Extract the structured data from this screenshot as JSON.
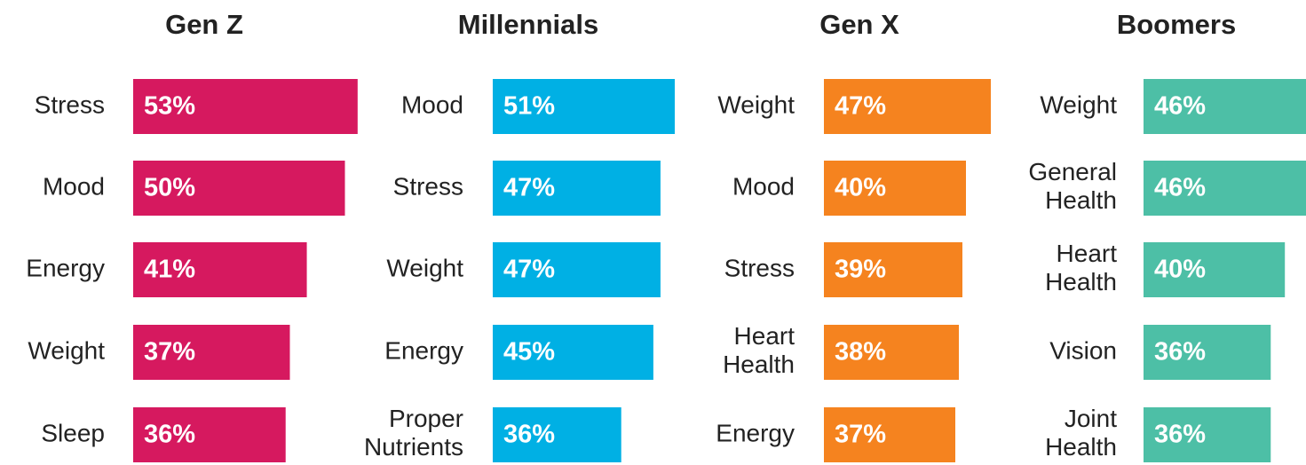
{
  "chart_data": [
    {
      "type": "bar",
      "orientation": "horizontal",
      "title": "Gen Z",
      "color": "#d6195f",
      "categories": [
        "Stress",
        "Mood",
        "Energy",
        "Weight",
        "Sleep"
      ],
      "values": [
        53,
        50,
        41,
        37,
        36
      ],
      "value_labels": [
        "53%",
        "50%",
        "41%",
        "37%",
        "36%"
      ]
    },
    {
      "type": "bar",
      "orientation": "horizontal",
      "title": "Millennials",
      "color": "#00b0e4",
      "categories": [
        "Mood",
        "Stress",
        "Weight",
        "Energy",
        "Proper Nutrients"
      ],
      "values": [
        51,
        47,
        47,
        45,
        36
      ],
      "value_labels": [
        "51%",
        "47%",
        "47%",
        "45%",
        "36%"
      ]
    },
    {
      "type": "bar",
      "orientation": "horizontal",
      "title": "Gen X",
      "color": "#f5831f",
      "categories": [
        "Weight",
        "Mood",
        "Stress",
        "Heart Health",
        "Energy"
      ],
      "values": [
        47,
        40,
        39,
        38,
        37
      ],
      "value_labels": [
        "47%",
        "40%",
        "39%",
        "38%",
        "37%"
      ]
    },
    {
      "type": "bar",
      "orientation": "horizontal",
      "title": "Boomers",
      "color": "#4dbfa6",
      "categories": [
        "Weight",
        "General Health",
        "Heart Health",
        "Vision",
        "Joint Health"
      ],
      "values": [
        46,
        46,
        40,
        36,
        36
      ],
      "value_labels": [
        "46%",
        "46%",
        "40%",
        "36%",
        "36%"
      ]
    }
  ]
}
